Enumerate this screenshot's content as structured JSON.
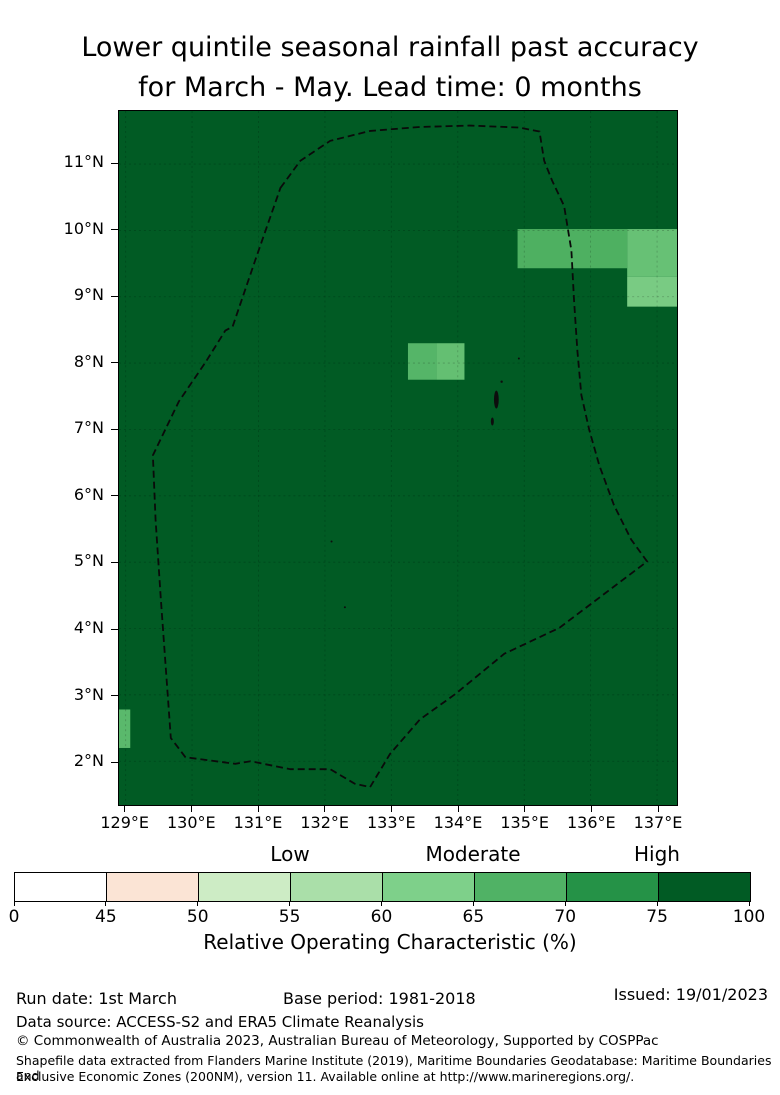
{
  "title": {
    "line1": "Lower quintile seasonal rainfall past accuracy",
    "line2": "for March - May. Lead time: 0 months"
  },
  "colorbar": {
    "region_labels": {
      "low": "Low",
      "moderate": "Moderate",
      "high": "High"
    },
    "ticks": [
      "0",
      "45",
      "50",
      "55",
      "60",
      "65",
      "70",
      "75",
      "100"
    ],
    "segment_colors": [
      "#ffffff",
      "#fbe4d5",
      "#cdecc5",
      "#aadfa9",
      "#7ed08a",
      "#50b265",
      "#259247",
      "#015b24"
    ],
    "axis_label": "Relative Operating Characteristic (%)"
  },
  "footer": {
    "run_date": "Run date: 1st March",
    "base_period": "Base period: 1981-2018",
    "issued": "Issued: 19/01/2023",
    "data_source": "Data source: ACCESS-S2 and ERA5 Climate Reanalysis",
    "copyright": "© Commonwealth of Australia 2023, Australian Bureau of Meteorology, Supported by COSPPac",
    "shapefile_line1": "Shapefile data extracted from Flanders Marine Institute (2019), Maritime Boundaries Geodatabase: Maritime Boundaries and",
    "shapefile_line2": "Exclusive Economic Zones (200NM), version 11. Available online at http://www.marineregions.org/."
  },
  "chart_data": {
    "type": "heatmap",
    "title": "Lower quintile seasonal rainfall past accuracy for March - May. Lead time: 0 months",
    "colorbar_label": "Relative Operating Characteristic (%)",
    "colorbar_tick_values": [
      0,
      45,
      50,
      55,
      60,
      65,
      70,
      75,
      100
    ],
    "legend_region_labels": [
      "Low",
      "Moderate",
      "High"
    ],
    "extent": {
      "lon": [
        128.9,
        137.3
      ],
      "lat": [
        1.34,
        11.8
      ]
    },
    "ocean_color": "#015b24",
    "background_roc_range": "75-100",
    "x_ticks": [
      {
        "lon": 129,
        "label": "129°E"
      },
      {
        "lon": 130,
        "label": "130°E"
      },
      {
        "lon": 131,
        "label": "131°E"
      },
      {
        "lon": 132,
        "label": "132°E"
      },
      {
        "lon": 133,
        "label": "133°E"
      },
      {
        "lon": 134,
        "label": "134°E"
      },
      {
        "lon": 135,
        "label": "135°E"
      },
      {
        "lon": 136,
        "label": "136°E"
      },
      {
        "lon": 137,
        "label": "137°E"
      }
    ],
    "y_ticks": [
      {
        "lat": 11,
        "label": "11°N"
      },
      {
        "lat": 10,
        "label": "10°N"
      },
      {
        "lat": 9,
        "label": "9°N"
      },
      {
        "lat": 8,
        "label": "8°N"
      },
      {
        "lat": 7,
        "label": "7°N"
      },
      {
        "lat": 6,
        "label": "6°N"
      },
      {
        "lat": 5,
        "label": "5°N"
      },
      {
        "lat": 4,
        "label": "4°N"
      },
      {
        "lat": 3,
        "label": "3°N"
      },
      {
        "lat": 2,
        "label": "2°N"
      }
    ],
    "gridlines": {
      "lon": [
        129,
        130,
        131,
        132,
        133,
        134,
        135,
        136,
        137
      ],
      "lat": [
        2,
        3,
        4,
        5,
        6,
        7,
        8,
        9,
        10,
        11
      ]
    },
    "cells": [
      {
        "lon": [
          134.9,
          136.55
        ],
        "lat": [
          9.43,
          10.02
        ],
        "roc": 67,
        "color": "#4eb061"
      },
      {
        "lon": [
          136.55,
          137.3
        ],
        "lat": [
          9.3,
          10.02
        ],
        "roc": 63,
        "color": "#67c175"
      },
      {
        "lon": [
          136.55,
          137.3
        ],
        "lat": [
          8.85,
          9.3
        ],
        "roc": 60,
        "color": "#79cb83"
      },
      {
        "lon": [
          133.25,
          133.68
        ],
        "lat": [
          7.75,
          8.3
        ],
        "roc": 66,
        "color": "#55b568"
      },
      {
        "lon": [
          133.68,
          134.1
        ],
        "lat": [
          7.75,
          8.3
        ],
        "roc": 63,
        "color": "#64bf72"
      },
      {
        "lon": [
          128.9,
          129.07
        ],
        "lat": [
          2.2,
          2.78
        ],
        "roc": 65,
        "color": "#5ab96c"
      }
    ],
    "eez_boundary": [
      [
        131.33,
        10.64
      ],
      [
        131.63,
        11.05
      ],
      [
        132.08,
        11.35
      ],
      [
        132.68,
        11.5
      ],
      [
        133.43,
        11.56
      ],
      [
        134.18,
        11.58
      ],
      [
        134.93,
        11.55
      ],
      [
        135.23,
        11.49
      ],
      [
        135.3,
        11.05
      ],
      [
        135.42,
        10.75
      ],
      [
        135.6,
        10.37
      ],
      [
        135.71,
        9.7
      ],
      [
        135.75,
        8.94
      ],
      [
        135.8,
        8.19
      ],
      [
        135.86,
        7.52
      ],
      [
        135.98,
        6.99
      ],
      [
        136.13,
        6.46
      ],
      [
        136.35,
        5.86
      ],
      [
        136.61,
        5.34
      ],
      [
        136.85,
        5.01
      ],
      [
        135.53,
        4.01
      ],
      [
        134.7,
        3.62
      ],
      [
        133.96,
        3.01
      ],
      [
        133.43,
        2.63
      ],
      [
        132.98,
        2.11
      ],
      [
        132.68,
        1.61
      ],
      [
        132.45,
        1.66
      ],
      [
        132.08,
        1.88
      ],
      [
        131.48,
        1.88
      ],
      [
        130.88,
        2.0
      ],
      [
        130.65,
        1.96
      ],
      [
        130.13,
        2.03
      ],
      [
        129.9,
        2.06
      ],
      [
        129.68,
        2.35
      ],
      [
        129.53,
        4.44
      ],
      [
        129.45,
        5.64
      ],
      [
        129.41,
        6.61
      ],
      [
        129.8,
        7.42
      ],
      [
        130.2,
        8.01
      ],
      [
        130.5,
        8.49
      ],
      [
        130.61,
        8.55
      ],
      [
        130.95,
        9.55
      ]
    ],
    "islands": [
      {
        "name": "babeldaob",
        "lon": 134.58,
        "lat": 7.45,
        "rx": 2.4,
        "ry": 9
      },
      {
        "name": "koror-peleliu",
        "lon": 134.52,
        "lat": 7.12,
        "rx": 1.5,
        "ry": 4
      },
      {
        "name": "kayangel",
        "lon": 134.66,
        "lat": 7.72,
        "rx": 1.2,
        "ry": 1.2
      },
      {
        "name": "islet-ne",
        "lon": 134.92,
        "lat": 8.07,
        "rx": 1.0,
        "ry": 1.0
      },
      {
        "name": "sonsorol",
        "lon": 132.1,
        "lat": 5.31,
        "rx": 1.0,
        "ry": 1.0
      },
      {
        "name": "merir",
        "lon": 132.3,
        "lat": 4.32,
        "rx": 1.0,
        "ry": 1.0
      }
    ]
  }
}
